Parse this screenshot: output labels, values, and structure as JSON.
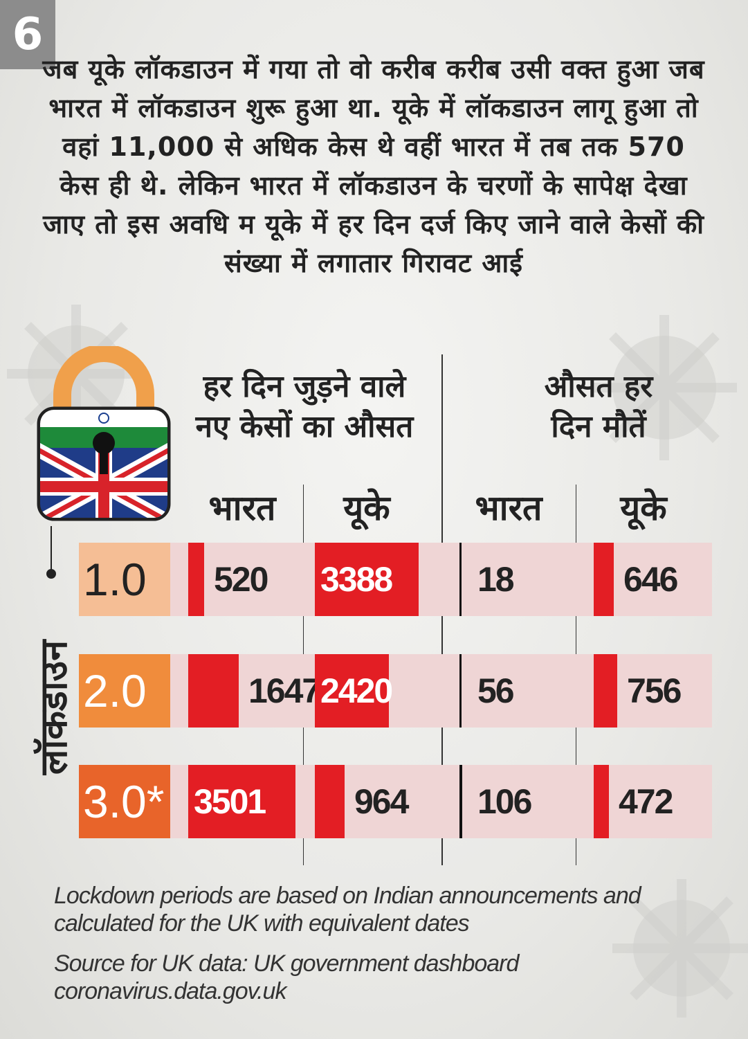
{
  "badge": "6",
  "intro": "जब यूके लॉकडाउन में गया तो वो करीब करीब उसी वक्त हुआ जब भारत में लॉकडाउन शुरू हुआ था. यूके में लॉकडाउन लागू हुआ तो वहां 11,000 से अधिक केस थे वहीं भारत में तब तक 570 केस ही थे. लेकिन भारत में लॉकडाउन के चरणों के सापेक्ष देखा जाए तो इस अवधि म यूके में हर दिन दर्ज किए जाने वाले केसों की संख्या में लगातार गिरावट आई",
  "headers": {
    "cases_line1": "हर दिन जुड़ने वाले",
    "cases_line2": "नए केसों का औसत",
    "deaths_line1": "औसत हर",
    "deaths_line2": "दिन मौतें",
    "india": "भारत",
    "uk": "यूके"
  },
  "side_label": "लॉकडाउन",
  "colors": {
    "bar": "#e31e24",
    "cell_bg": "#efd5d5",
    "phase1": "#f5be95",
    "phase2": "#f08c3c",
    "phase3": "#e8642a"
  },
  "chart_data": {
    "type": "bar",
    "categories": [
      "1.0",
      "2.0",
      "3.0*"
    ],
    "series": [
      {
        "name": "हर दिन जुड़ने वाले नए केसों का औसत — भारत",
        "values": [
          520,
          1647,
          3501
        ]
      },
      {
        "name": "हर दिन जुड़ने वाले नए केसों का औसत — यूके",
        "values": [
          3388,
          2420,
          964
        ]
      },
      {
        "name": "औसत हर दिन मौतें — भारत",
        "values": [
          18,
          56,
          106
        ]
      },
      {
        "name": "औसत हर दिन मौतें — यूके",
        "values": [
          646,
          756,
          472
        ]
      }
    ],
    "value_labels": [
      [
        "520",
        "3388",
        "18",
        "646"
      ],
      [
        "1647",
        "2420",
        "56",
        "756"
      ],
      [
        "3501",
        "964",
        "106",
        "472"
      ]
    ]
  },
  "footnote1": "Lockdown periods are based on Indian announcements and calculated for the UK with equivalent dates",
  "footnote2": "Source for UK data: UK government dashboard coronavirus.data.gov.uk"
}
